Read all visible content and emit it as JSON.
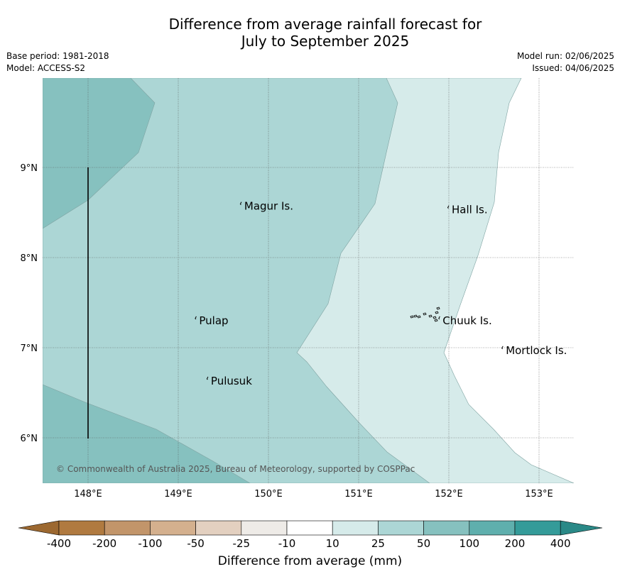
{
  "title": {
    "line1": "Difference from average rainfall forecast for",
    "line2": "July to September 2025"
  },
  "meta_left": {
    "base_period": "Base period: 1981-2018",
    "model": "Model: ACCESS-S2"
  },
  "meta_right": {
    "model_run": "Model run: 02/06/2025",
    "issued": "Issued: 04/06/2025"
  },
  "map": {
    "lon_range": [
      147.5,
      153.4
    ],
    "lat_range": [
      5.5,
      10.0
    ],
    "lon_ticks": [
      "148°E",
      "149°E",
      "150°E",
      "151°E",
      "152°E",
      "153°E"
    ],
    "lat_ticks": [
      "9°N",
      "8°N",
      "7°N",
      "6°N"
    ],
    "gridlines": true,
    "places": [
      {
        "name": "Magur Is.",
        "lon": 149.7,
        "lat": 8.57
      },
      {
        "name": "Hall Is.",
        "lon": 152.0,
        "lat": 8.53
      },
      {
        "name": "Pulap",
        "lon": 149.2,
        "lat": 7.3
      },
      {
        "name": "Chuuk Is.",
        "lon": 151.9,
        "lat": 7.3
      },
      {
        "name": "Mortlock Is.",
        "lon": 152.6,
        "lat": 6.97
      },
      {
        "name": "Pulusuk",
        "lon": 149.33,
        "lat": 6.63
      }
    ],
    "copyright": "© Commonwealth of Australia 2025, Bureau of Meteorology, supported by COSPPac"
  },
  "colorbar": {
    "ticks": [
      "-400",
      "-200",
      "-100",
      "-50",
      "-25",
      "-10",
      "10",
      "25",
      "50",
      "100",
      "200",
      "400"
    ],
    "colors": [
      "#b07a40",
      "#c2956a",
      "#d4b08e",
      "#e3d0c0",
      "#eeebe7",
      "#ffffff",
      "#d6ebea",
      "#acd6d5",
      "#86c1bf",
      "#5fafad",
      "#349b99"
    ],
    "under_color": "#9c6830",
    "over_color": "#2a8987",
    "label": "Difference from average (mm)"
  },
  "legend_colors": {
    "band_10_25": "#d6ebea",
    "band_25_50": "#acd6d5",
    "band_50_100": "#86c1bf",
    "neutral": "#ffffff"
  }
}
